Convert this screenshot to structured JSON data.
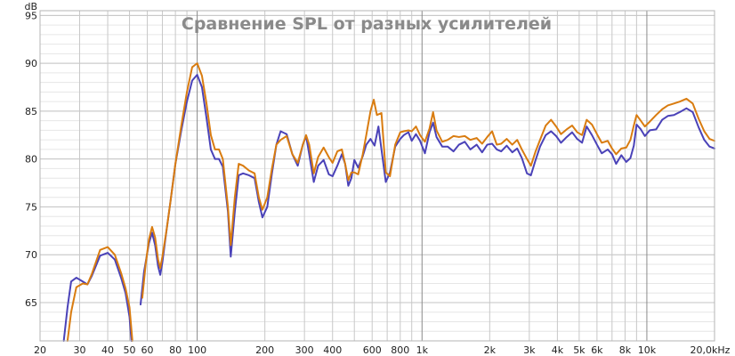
{
  "chart_data": {
    "type": "line",
    "title": "Сравнение SPL от разных усилителей",
    "ylabel": "dB",
    "xlabel": "",
    "xscale": "log",
    "xlim": [
      20,
      20000
    ],
    "ylim": [
      61,
      95.5
    ],
    "grid": true,
    "x_ticks": [
      20,
      30,
      40,
      50,
      60,
      80,
      100,
      200,
      300,
      400,
      600,
      800,
      1000,
      2000,
      3000,
      4000,
      5000,
      6000,
      8000,
      10000,
      20000
    ],
    "x_tick_labels": [
      "20",
      "30",
      "40",
      "50",
      "60",
      "80",
      "100",
      "200",
      "300",
      "400",
      "600",
      "800",
      "1k",
      "2k",
      "3k",
      "4k",
      "5k",
      "6k",
      "8k",
      "10k",
      "20,0kHz"
    ],
    "y_ticks": [
      65,
      70,
      75,
      80,
      85,
      90,
      95
    ],
    "y_tick_labels": [
      "65",
      "70",
      "75",
      "80",
      "85",
      "90",
      "95"
    ],
    "series": [
      {
        "color": "#4a42b8",
        "points": [
          [
            25.5,
            61
          ],
          [
            26.5,
            64.5
          ],
          [
            27.5,
            67.2
          ],
          [
            29,
            67.6
          ],
          [
            31,
            67.2
          ],
          [
            32.5,
            66.9
          ],
          [
            34,
            67.8
          ],
          [
            37,
            69.9
          ],
          [
            40,
            70.2
          ],
          [
            43,
            69.5
          ],
          [
            46,
            67.5
          ],
          [
            48,
            66
          ],
          [
            50,
            63.5
          ],
          [
            51,
            61
          ],
          [
            55,
            61
          ],
          [
            56,
            64.8
          ],
          [
            58,
            68.2
          ],
          [
            61,
            71.2
          ],
          [
            63,
            72.3
          ],
          [
            65,
            71
          ],
          [
            67,
            68.8
          ],
          [
            68.5,
            67.9
          ],
          [
            70,
            69.2
          ],
          [
            73,
            72.5
          ],
          [
            76,
            75.5
          ],
          [
            80,
            79.5
          ],
          [
            85,
            83
          ],
          [
            90,
            86
          ],
          [
            95,
            88.2
          ],
          [
            100,
            88.8
          ],
          [
            105,
            87.5
          ],
          [
            110,
            84.3
          ],
          [
            115,
            81
          ],
          [
            120,
            80
          ],
          [
            125,
            80
          ],
          [
            130,
            79.2
          ],
          [
            137,
            74.5
          ],
          [
            141,
            69.8
          ],
          [
            147,
            74.5
          ],
          [
            153,
            78.3
          ],
          [
            160,
            78.5
          ],
          [
            170,
            78.3
          ],
          [
            180,
            78
          ],
          [
            188,
            75.5
          ],
          [
            195,
            73.9
          ],
          [
            205,
            75
          ],
          [
            215,
            78.5
          ],
          [
            225,
            81.5
          ],
          [
            235,
            82.9
          ],
          [
            250,
            82.6
          ],
          [
            265,
            80.5
          ],
          [
            280,
            79.3
          ],
          [
            295,
            81.5
          ],
          [
            305,
            82.4
          ],
          [
            315,
            80.5
          ],
          [
            330,
            77.6
          ],
          [
            345,
            79.3
          ],
          [
            365,
            79.9
          ],
          [
            385,
            78.4
          ],
          [
            400,
            78.2
          ],
          [
            420,
            79.3
          ],
          [
            440,
            80.5
          ],
          [
            455,
            79.5
          ],
          [
            470,
            77.2
          ],
          [
            485,
            78
          ],
          [
            500,
            79.9
          ],
          [
            520,
            79.1
          ],
          [
            545,
            80.3
          ],
          [
            565,
            81.5
          ],
          [
            590,
            82.1
          ],
          [
            615,
            81.4
          ],
          [
            640,
            83.4
          ],
          [
            660,
            81
          ],
          [
            690,
            77.6
          ],
          [
            720,
            78.6
          ],
          [
            760,
            81.3
          ],
          [
            800,
            82.1
          ],
          [
            830,
            82.5
          ],
          [
            870,
            82.8
          ],
          [
            900,
            81.9
          ],
          [
            940,
            82.6
          ],
          [
            980,
            81.9
          ],
          [
            1030,
            80.6
          ],
          [
            1080,
            82.8
          ],
          [
            1120,
            83.8
          ],
          [
            1160,
            82.3
          ],
          [
            1230,
            81.3
          ],
          [
            1300,
            81.3
          ],
          [
            1380,
            80.8
          ],
          [
            1460,
            81.5
          ],
          [
            1550,
            81.8
          ],
          [
            1640,
            81
          ],
          [
            1750,
            81.5
          ],
          [
            1850,
            80.7
          ],
          [
            1950,
            81.5
          ],
          [
            2050,
            81.6
          ],
          [
            2150,
            81
          ],
          [
            2250,
            80.8
          ],
          [
            2380,
            81.4
          ],
          [
            2520,
            80.7
          ],
          [
            2650,
            81.1
          ],
          [
            2780,
            80.1
          ],
          [
            2930,
            78.5
          ],
          [
            3050,
            78.3
          ],
          [
            3200,
            79.9
          ],
          [
            3350,
            81.3
          ],
          [
            3550,
            82.5
          ],
          [
            3750,
            82.9
          ],
          [
            3950,
            82.4
          ],
          [
            4150,
            81.7
          ],
          [
            4400,
            82.3
          ],
          [
            4650,
            82.8
          ],
          [
            4900,
            82.1
          ],
          [
            5150,
            81.7
          ],
          [
            5400,
            83.4
          ],
          [
            5700,
            82.5
          ],
          [
            6000,
            81.5
          ],
          [
            6300,
            80.6
          ],
          [
            6700,
            81
          ],
          [
            7000,
            80.5
          ],
          [
            7300,
            79.5
          ],
          [
            7700,
            80.4
          ],
          [
            8100,
            79.7
          ],
          [
            8450,
            80.1
          ],
          [
            8750,
            81.4
          ],
          [
            9000,
            83.6
          ],
          [
            9400,
            83.1
          ],
          [
            9800,
            82.4
          ],
          [
            10300,
            83
          ],
          [
            11000,
            83.1
          ],
          [
            11700,
            84.1
          ],
          [
            12400,
            84.5
          ],
          [
            13200,
            84.6
          ],
          [
            14000,
            84.9
          ],
          [
            15000,
            85.3
          ],
          [
            16000,
            84.9
          ],
          [
            17000,
            83.3
          ],
          [
            18000,
            82
          ],
          [
            19000,
            81.3
          ],
          [
            20000,
            81.1
          ]
        ]
      },
      {
        "color": "#d97c10",
        "points": [
          [
            26.5,
            61
          ],
          [
            27.5,
            64
          ],
          [
            29,
            66.6
          ],
          [
            31,
            67
          ],
          [
            32.5,
            66.9
          ],
          [
            34,
            68
          ],
          [
            37,
            70.5
          ],
          [
            40,
            70.8
          ],
          [
            43,
            70
          ],
          [
            46,
            68
          ],
          [
            48,
            66.5
          ],
          [
            50,
            64.5
          ],
          [
            51.5,
            61
          ],
          [
            55.5,
            61
          ],
          [
            57,
            65.5
          ],
          [
            59,
            69
          ],
          [
            61,
            71.6
          ],
          [
            63,
            72.9
          ],
          [
            65,
            71.8
          ],
          [
            67,
            69.5
          ],
          [
            68.5,
            68.6
          ],
          [
            70,
            69.8
          ],
          [
            73,
            72.5
          ],
          [
            76,
            75.5
          ],
          [
            80,
            79.5
          ],
          [
            85,
            83.5
          ],
          [
            90,
            87
          ],
          [
            95,
            89.6
          ],
          [
            100,
            90
          ],
          [
            105,
            88.7
          ],
          [
            110,
            85.8
          ],
          [
            115,
            82.5
          ],
          [
            120,
            81
          ],
          [
            125,
            81
          ],
          [
            130,
            80
          ],
          [
            137,
            75
          ],
          [
            141,
            71
          ],
          [
            147,
            76
          ],
          [
            153,
            79.5
          ],
          [
            160,
            79.3
          ],
          [
            170,
            78.8
          ],
          [
            180,
            78.5
          ],
          [
            188,
            76
          ],
          [
            195,
            74.7
          ],
          [
            205,
            76
          ],
          [
            215,
            79
          ],
          [
            225,
            81.5
          ],
          [
            235,
            82
          ],
          [
            250,
            82.4
          ],
          [
            265,
            80.5
          ],
          [
            280,
            79.6
          ],
          [
            295,
            81.5
          ],
          [
            305,
            82.5
          ],
          [
            315,
            81.5
          ],
          [
            330,
            78.5
          ],
          [
            345,
            80.2
          ],
          [
            365,
            81.2
          ],
          [
            385,
            80.2
          ],
          [
            400,
            79.6
          ],
          [
            420,
            80.8
          ],
          [
            440,
            81
          ],
          [
            455,
            79.5
          ],
          [
            470,
            77.8
          ],
          [
            485,
            78.6
          ],
          [
            500,
            78.6
          ],
          [
            520,
            78.4
          ],
          [
            545,
            80.5
          ],
          [
            565,
            82.5
          ],
          [
            590,
            85
          ],
          [
            610,
            86.2
          ],
          [
            630,
            84.6
          ],
          [
            660,
            84.8
          ],
          [
            690,
            78.6
          ],
          [
            720,
            78.2
          ],
          [
            760,
            81.5
          ],
          [
            800,
            82.8
          ],
          [
            830,
            82.9
          ],
          [
            870,
            83
          ],
          [
            900,
            82.9
          ],
          [
            940,
            83.4
          ],
          [
            980,
            82.5
          ],
          [
            1030,
            81.8
          ],
          [
            1080,
            83.2
          ],
          [
            1120,
            84.9
          ],
          [
            1160,
            83
          ],
          [
            1230,
            81.8
          ],
          [
            1300,
            82
          ],
          [
            1380,
            82.4
          ],
          [
            1460,
            82.3
          ],
          [
            1550,
            82.4
          ],
          [
            1640,
            82
          ],
          [
            1750,
            82.2
          ],
          [
            1850,
            81.6
          ],
          [
            1950,
            82.3
          ],
          [
            2050,
            82.9
          ],
          [
            2150,
            81.5
          ],
          [
            2250,
            81.6
          ],
          [
            2380,
            82.1
          ],
          [
            2520,
            81.5
          ],
          [
            2650,
            82
          ],
          [
            2780,
            81
          ],
          [
            2930,
            80
          ],
          [
            3050,
            79.3
          ],
          [
            3200,
            80.8
          ],
          [
            3350,
            82
          ],
          [
            3550,
            83.5
          ],
          [
            3750,
            84.1
          ],
          [
            3950,
            83.4
          ],
          [
            4150,
            82.6
          ],
          [
            4400,
            83.1
          ],
          [
            4650,
            83.5
          ],
          [
            4900,
            82.8
          ],
          [
            5150,
            82.5
          ],
          [
            5400,
            84.1
          ],
          [
            5700,
            83.6
          ],
          [
            6000,
            82.6
          ],
          [
            6300,
            81.7
          ],
          [
            6700,
            81.9
          ],
          [
            7000,
            81.1
          ],
          [
            7300,
            80.5
          ],
          [
            7700,
            81.1
          ],
          [
            8100,
            81.2
          ],
          [
            8450,
            82
          ],
          [
            8750,
            83.5
          ],
          [
            9000,
            84.6
          ],
          [
            9400,
            84
          ],
          [
            9800,
            83.4
          ],
          [
            10300,
            83.9
          ],
          [
            11000,
            84.6
          ],
          [
            11700,
            85.2
          ],
          [
            12400,
            85.6
          ],
          [
            13200,
            85.8
          ],
          [
            14000,
            86
          ],
          [
            15000,
            86.3
          ],
          [
            16000,
            85.8
          ],
          [
            17000,
            84.2
          ],
          [
            18000,
            82.9
          ],
          [
            19000,
            82.1
          ],
          [
            20000,
            81.9
          ]
        ]
      }
    ]
  }
}
